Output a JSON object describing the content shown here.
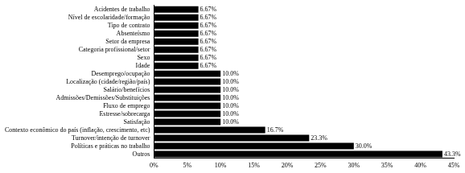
{
  "chart_data": {
    "type": "bar",
    "orientation": "horizontal",
    "categories": [
      "Acidentes de trabalho",
      "Nível de escolaridade/formação",
      "Tipo de contrato",
      "Absenteísmo",
      "Setor da empresa",
      "Categoria profissional/setor",
      "Sexo",
      "Idade",
      "Desemprego/ocupação",
      "Localização (cidade/região/país)",
      "Salário/benefícios",
      "Admissões/Demissões/Substituições",
      "Fluxo de emprego",
      "Estresse/sobrecarga",
      "Satisfação",
      "Contexto econômico do país (inflação, crescimento, etc)",
      "Turnover/intenção de turnover",
      "Políticas e práticas no trabalho",
      "Outros"
    ],
    "values": [
      6.67,
      6.67,
      6.67,
      6.67,
      6.67,
      6.67,
      6.67,
      6.67,
      10.0,
      10.0,
      10.0,
      10.0,
      10.0,
      10.0,
      10.0,
      16.7,
      23.3,
      30.0,
      43.3
    ],
    "value_labels": [
      "6.67%",
      "6.67%",
      "6.67%",
      "6.67%",
      "6.67%",
      "6.67%",
      "6.67%",
      "6.67%",
      "10.0%",
      "10.0%",
      "10.0%",
      "10.0%",
      "10.0%",
      "10.0%",
      "10.0%",
      "16.7%",
      "23.3%",
      "30.0%",
      "43.3%"
    ],
    "data_labels": true,
    "color": "#000000",
    "xlim": [
      0,
      45
    ],
    "xticks": [
      {
        "value": 0,
        "label": "0%"
      },
      {
        "value": 5,
        "label": "5%"
      },
      {
        "value": 10,
        "label": "10%"
      },
      {
        "value": 15,
        "label": "15%"
      },
      {
        "value": 20,
        "label": "20%"
      },
      {
        "value": 25,
        "label": "25%"
      },
      {
        "value": 30,
        "label": "30%"
      },
      {
        "value": 35,
        "label": "35%"
      },
      {
        "value": 40,
        "label": "40%"
      },
      {
        "value": 45,
        "label": "45%"
      }
    ],
    "grid": false
  }
}
